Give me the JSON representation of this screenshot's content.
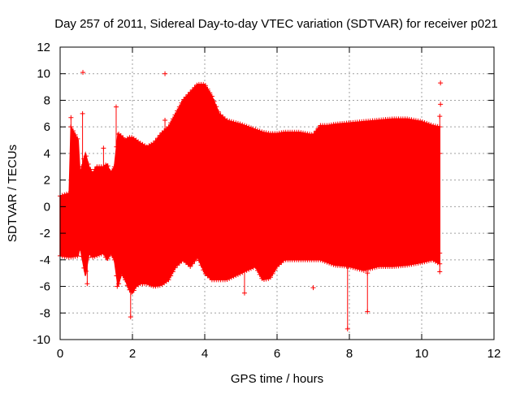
{
  "chart_data": {
    "type": "scatter",
    "title": "Day 257 of 2011, Sidereal Day-to-day VTEC variation (SDTVAR) for receiver p021",
    "xlabel": "GPS time / hours",
    "ylabel": "SDTVAR / TECUs",
    "xlim": [
      0,
      12
    ],
    "ylim": [
      -10,
      12
    ],
    "xticks": [
      "0",
      "2",
      "4",
      "6",
      "8",
      "10",
      "12"
    ],
    "yticks": [
      "-10",
      "-8",
      "-6",
      "-4",
      "-2",
      "0",
      "2",
      "4",
      "6",
      "8",
      "10",
      "12"
    ],
    "grid": true,
    "marker": "+",
    "series_color": "#ff0000",
    "envelope_x": [
      0.0,
      0.25,
      0.3,
      0.5,
      0.55,
      0.7,
      0.8,
      0.9,
      1.0,
      1.2,
      1.3,
      1.4,
      1.5,
      1.6,
      1.7,
      1.8,
      1.9,
      2.0,
      2.1,
      2.2,
      2.4,
      2.6,
      2.8,
      3.0,
      3.2,
      3.4,
      3.6,
      3.8,
      4.0,
      4.2,
      4.4,
      4.6,
      5.0,
      5.4,
      5.6,
      5.8,
      6.0,
      6.2,
      6.6,
      7.0,
      7.2,
      7.4,
      7.6,
      8.0,
      8.4,
      8.8,
      9.2,
      9.6,
      10.0,
      10.3,
      10.5
    ],
    "envelope_upper": [
      0.8,
      1.0,
      6.0,
      5.0,
      2.5,
      4.0,
      3.0,
      2.5,
      3.0,
      3.0,
      3.2,
      2.5,
      3.0,
      5.5,
      5.3,
      5.0,
      5.2,
      5.2,
      5.0,
      4.8,
      4.5,
      4.8,
      5.5,
      6.0,
      7.0,
      8.0,
      8.6,
      9.2,
      9.2,
      8.3,
      7.0,
      6.5,
      6.2,
      5.8,
      5.6,
      5.5,
      5.5,
      5.6,
      5.6,
      5.4,
      6.1,
      6.1,
      6.2,
      6.3,
      6.4,
      6.5,
      6.6,
      6.6,
      6.4,
      6.1,
      6.0
    ],
    "envelope_lower": [
      -3.7,
      -3.8,
      -3.8,
      -3.7,
      -3.0,
      -5.2,
      -3.5,
      -3.8,
      -3.7,
      -3.5,
      -4.0,
      -3.5,
      -4.0,
      -6.0,
      -5.0,
      -5.5,
      -6.2,
      -6.5,
      -6.0,
      -5.8,
      -5.8,
      -6.0,
      -5.9,
      -5.5,
      -4.5,
      -4.0,
      -4.5,
      -3.8,
      -5.0,
      -5.5,
      -5.5,
      -5.5,
      -5.0,
      -4.5,
      -5.5,
      -5.4,
      -4.5,
      -4.0,
      -4.0,
      -4.0,
      -4.0,
      -4.2,
      -4.4,
      -4.5,
      -4.8,
      -4.5,
      -4.5,
      -4.4,
      -4.2,
      -4.0,
      -4.3
    ],
    "spikes": [
      {
        "x": 0.3,
        "y_min": 1.0,
        "y_max": 6.7
      },
      {
        "x": 0.62,
        "y_min": 0.5,
        "y_max": 7.0
      },
      {
        "x": 0.75,
        "y_min": -5.8,
        "y_max": -3.0
      },
      {
        "x": 1.2,
        "y_min": 1.0,
        "y_max": 4.4
      },
      {
        "x": 1.55,
        "y_min": 1.0,
        "y_max": 7.5
      },
      {
        "x": 1.58,
        "y_min": -6.0,
        "y_max": -3.0
      },
      {
        "x": 1.95,
        "y_min": -8.3,
        "y_max": -5.0
      },
      {
        "x": 2.9,
        "y_min": 2.0,
        "y_max": 6.5
      },
      {
        "x": 5.1,
        "y_min": -6.5,
        "y_max": -4.0
      },
      {
        "x": 7.95,
        "y_min": -9.2,
        "y_max": -4.5
      },
      {
        "x": 8.5,
        "y_min": -7.9,
        "y_max": -5.0
      },
      {
        "x": 10.5,
        "y_min": 4.0,
        "y_max": 6.8
      },
      {
        "x": 10.5,
        "y_min": -4.9,
        "y_max": -3.5
      }
    ],
    "outliers": [
      {
        "x": 0.63,
        "y": 10.1
      },
      {
        "x": 2.9,
        "y": 10.0
      },
      {
        "x": 10.52,
        "y": 9.3
      },
      {
        "x": 10.52,
        "y": 7.7
      },
      {
        "x": 7.0,
        "y": -6.1
      }
    ]
  }
}
